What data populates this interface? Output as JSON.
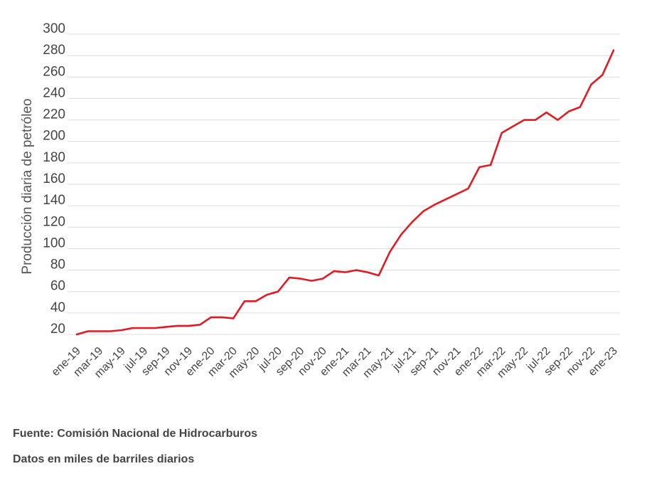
{
  "chart_data": {
    "type": "line",
    "ylabel": "Producción diaria de petróleo",
    "xlabel": "",
    "ylim": [
      15,
      300
    ],
    "yticks": [
      20,
      40,
      60,
      80,
      100,
      120,
      140,
      160,
      180,
      200,
      220,
      240,
      260,
      280,
      300
    ],
    "grid": true,
    "x_tick_labels": [
      "ene-19",
      "mar-19",
      "may-19",
      "jul-19",
      "sep-19",
      "nov-19",
      "ene-20",
      "mar-20",
      "may-20",
      "jul-20",
      "sep-20",
      "nov-20",
      "ene-21",
      "mar-21",
      "may-21",
      "jul-21",
      "sep-21",
      "nov-21",
      "ene-22",
      "mar-22",
      "may-22",
      "jul-22",
      "sep-22",
      "nov-22",
      "ene-23"
    ],
    "x": [
      "ene-19",
      "feb-19",
      "mar-19",
      "abr-19",
      "may-19",
      "jun-19",
      "jul-19",
      "ago-19",
      "sep-19",
      "oct-19",
      "nov-19",
      "dic-19",
      "ene-20",
      "feb-20",
      "mar-20",
      "abr-20",
      "may-20",
      "jun-20",
      "jul-20",
      "ago-20",
      "sep-20",
      "oct-20",
      "nov-20",
      "dic-20",
      "ene-21",
      "feb-21",
      "mar-21",
      "abr-21",
      "may-21",
      "jun-21",
      "jul-21",
      "ago-21",
      "sep-21",
      "oct-21",
      "nov-21",
      "dic-21",
      "ene-22",
      "feb-22",
      "mar-22",
      "abr-22",
      "may-22",
      "jun-22",
      "jul-22",
      "ago-22",
      "sep-22",
      "oct-22",
      "nov-22",
      "dic-22",
      "ene-23"
    ],
    "series": [
      {
        "color": "#e41a23",
        "values": [
          20,
          23,
          23,
          23,
          24,
          26,
          26,
          26,
          27,
          28,
          28,
          29,
          36,
          36,
          35,
          51,
          51,
          57,
          60,
          73,
          72,
          70,
          72,
          79,
          78,
          80,
          78,
          75,
          97,
          113,
          125,
          135,
          141,
          146,
          151,
          156,
          176,
          178,
          208,
          214,
          220,
          220,
          227,
          220,
          228,
          232,
          253,
          262,
          285
        ]
      }
    ]
  },
  "notes": {
    "source": "Fuente: Comisión Nacional de Hidrocarburos",
    "units": "Datos en miles de barriles diarios"
  }
}
